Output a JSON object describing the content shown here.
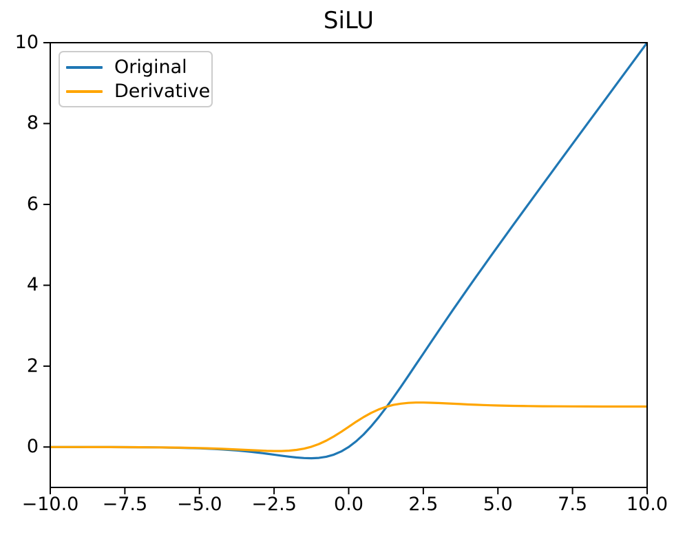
{
  "figure": {
    "background": "#ffffff",
    "text_color": "#000000",
    "spine_color": "#000000"
  },
  "legend": {
    "border_color": "#cccccc",
    "items": [
      {
        "label": "Original",
        "color": "#1f77b4"
      },
      {
        "label": "Derivative",
        "color": "#ffa500"
      }
    ]
  },
  "chart_data": {
    "type": "line",
    "title": "SiLU",
    "xlabel": "",
    "ylabel": "",
    "grid": false,
    "legend_position": "upper left",
    "xlim": [
      -10,
      10
    ],
    "ylim": [
      -1,
      10
    ],
    "xticks": [
      {
        "v": -10,
        "label": "−10.0"
      },
      {
        "v": -7.5,
        "label": "−7.5"
      },
      {
        "v": -5,
        "label": "−5.0"
      },
      {
        "v": -2.5,
        "label": "−2.5"
      },
      {
        "v": 0,
        "label": "0.0"
      },
      {
        "v": 2.5,
        "label": "2.5"
      },
      {
        "v": 5,
        "label": "5.0"
      },
      {
        "v": 7.5,
        "label": "7.5"
      },
      {
        "v": 10,
        "label": "10.0"
      }
    ],
    "yticks": [
      {
        "v": 0,
        "label": "0"
      },
      {
        "v": 2,
        "label": "2"
      },
      {
        "v": 4,
        "label": "4"
      },
      {
        "v": 6,
        "label": "6"
      },
      {
        "v": 8,
        "label": "8"
      },
      {
        "v": 10,
        "label": "10"
      }
    ],
    "x": [
      -10,
      -9.5,
      -9,
      -8.5,
      -8,
      -7.5,
      -7,
      -6.5,
      -6,
      -5.5,
      -5,
      -4.75,
      -4.5,
      -4.25,
      -4,
      -3.75,
      -3.5,
      -3.25,
      -3,
      -2.75,
      -2.5,
      -2.25,
      -2,
      -1.75,
      -1.5,
      -1.25,
      -1,
      -0.75,
      -0.5,
      -0.25,
      0,
      0.25,
      0.5,
      0.75,
      1,
      1.25,
      1.5,
      1.75,
      2,
      2.25,
      2.5,
      2.75,
      3,
      3.25,
      3.5,
      3.75,
      4,
      4.25,
      4.5,
      4.75,
      5,
      5.5,
      6,
      6.5,
      7,
      7.5,
      8,
      8.5,
      9,
      9.5,
      10
    ],
    "series": [
      {
        "name": "Original",
        "color": "#1f77b4",
        "values": [
          -0.0005,
          -0.0007,
          -0.0011,
          -0.0017,
          -0.0027,
          -0.0041,
          -0.0064,
          -0.0097,
          -0.0149,
          -0.0225,
          -0.0335,
          -0.0409,
          -0.0495,
          -0.0599,
          -0.0719,
          -0.0862,
          -0.1025,
          -0.1212,
          -0.1423,
          -0.1653,
          -0.1898,
          -0.2144,
          -0.2384,
          -0.259,
          -0.2736,
          -0.2784,
          -0.2689,
          -0.2406,
          -0.1888,
          -0.1094,
          0,
          0.1406,
          0.3112,
          0.5094,
          0.7311,
          0.9716,
          1.2264,
          1.491,
          1.7616,
          2.0356,
          2.3102,
          2.5847,
          2.8577,
          3.1288,
          3.3975,
          3.6638,
          3.9281,
          4.1901,
          4.4505,
          4.7091,
          4.9665,
          5.4775,
          5.9851,
          6.4903,
          6.9936,
          7.4959,
          7.9973,
          8.4983,
          8.9989,
          9.4993,
          9.9995
        ]
      },
      {
        "name": "Derivative",
        "color": "#ffa500",
        "values": [
          -0.0004,
          -0.0006,
          -0.001,
          -0.0015,
          -0.0024,
          -0.0036,
          -0.0054,
          -0.0082,
          -0.0125,
          -0.0184,
          -0.0266,
          -0.0319,
          -0.038,
          -0.045,
          -0.0527,
          -0.0613,
          -0.0702,
          -0.0794,
          -0.0881,
          -0.0952,
          -0.0995,
          -0.0987,
          -0.0908,
          -0.0727,
          -0.0413,
          0.0063,
          0.0723,
          0.1574,
          0.26,
          0.3763,
          0.5,
          0.6237,
          0.74,
          0.8426,
          0.9277,
          0.9937,
          1.0413,
          1.0727,
          1.0908,
          1.0987,
          1.0995,
          1.0952,
          1.0881,
          1.0794,
          1.0702,
          1.0613,
          1.0527,
          1.045,
          1.038,
          1.0319,
          1.0266,
          1.0184,
          1.0125,
          1.0082,
          1.0054,
          1.0036,
          1.0024,
          1.0015,
          1.001,
          1.0006,
          1.0004
        ]
      }
    ]
  }
}
